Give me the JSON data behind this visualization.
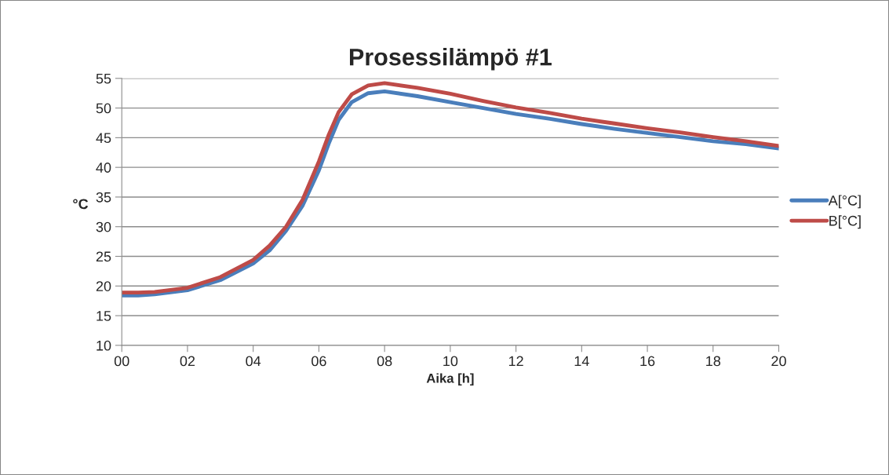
{
  "chart_data": {
    "type": "line",
    "title": "Prosessilämpö #1",
    "xlabel": "Aika [h]",
    "ylabel": "°C",
    "x": [
      0,
      0.5,
      1,
      2,
      3,
      4,
      4.5,
      5,
      5.5,
      6,
      6.3,
      6.6,
      7,
      7.5,
      8,
      9,
      10,
      11,
      12,
      13,
      14,
      15,
      16,
      17,
      18,
      19,
      20
    ],
    "series": [
      {
        "name": "A[°C]",
        "color": "#4a7ebb",
        "values": [
          18.4,
          18.4,
          18.6,
          19.3,
          21,
          23.8,
          26,
          29.3,
          33.5,
          39.5,
          44,
          48,
          51,
          52.5,
          52.8,
          52,
          51,
          50,
          49,
          48.2,
          47.3,
          46.5,
          45.8,
          45.1,
          44.4,
          43.9,
          43.2
        ]
      },
      {
        "name": "B[°C]",
        "color": "#be4b48",
        "values": [
          18.9,
          18.9,
          19,
          19.7,
          21.5,
          24.4,
          26.8,
          30,
          34.5,
          41,
          45.5,
          49.3,
          52.3,
          53.8,
          54.2,
          53.4,
          52.4,
          51.2,
          50.1,
          49.2,
          48.2,
          47.4,
          46.6,
          45.9,
          45.1,
          44.4,
          43.6
        ]
      }
    ],
    "xlim": [
      0,
      20
    ],
    "xticks": [
      {
        "value": 0,
        "label": "00"
      },
      {
        "value": 2,
        "label": "02"
      },
      {
        "value": 4,
        "label": "04"
      },
      {
        "value": 6,
        "label": "06"
      },
      {
        "value": 8,
        "label": "08"
      },
      {
        "value": 10,
        "label": "10"
      },
      {
        "value": 12,
        "label": "12"
      },
      {
        "value": 14,
        "label": "14"
      },
      {
        "value": 16,
        "label": "16"
      },
      {
        "value": 18,
        "label": "18"
      },
      {
        "value": 20,
        "label": "20"
      }
    ],
    "ylim": [
      10,
      55
    ],
    "yticks": [
      10,
      15,
      20,
      25,
      30,
      35,
      40,
      45,
      50,
      55
    ],
    "grid": "y",
    "legend": "right",
    "marker": "none",
    "line_style": "solid"
  }
}
